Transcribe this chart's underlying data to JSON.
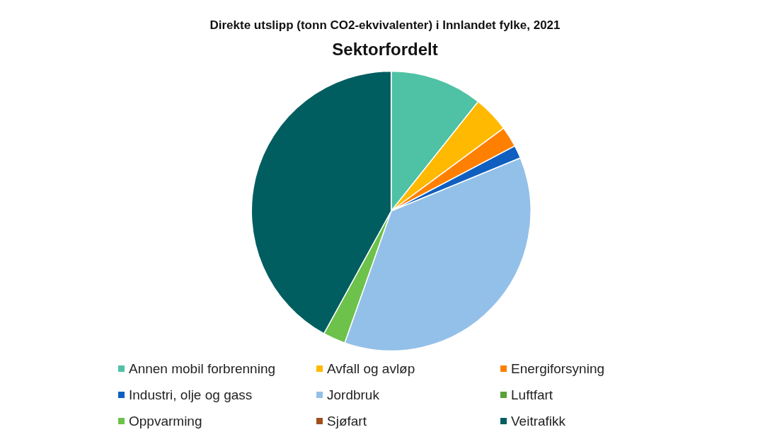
{
  "chart_data": {
    "type": "pie",
    "title": "Direkte utslipp (tonn CO2-ekvivalenter) i Innlandet fylke, 2021",
    "subtitle": "Sektorfordelt",
    "categories": [
      "Annen mobil forbrenning",
      "Avfall og avløp",
      "Energiforsyning",
      "Industri, olje og gass",
      "Jordbruk",
      "Luftfart",
      "Oppvarming",
      "Sjøfart",
      "Veitrafikk"
    ],
    "values": [
      10.7,
      4.2,
      2.4,
      1.5,
      36.6,
      null,
      2.6,
      null,
      42.0
    ],
    "colors": [
      "#4fc1a4",
      "#ffb900",
      "#ff8000",
      "#0f5fc0",
      "#93c0e8",
      "#5aa03a",
      "#6cc24a",
      "#a0501a",
      "#005e60"
    ],
    "legend": "bottom"
  }
}
